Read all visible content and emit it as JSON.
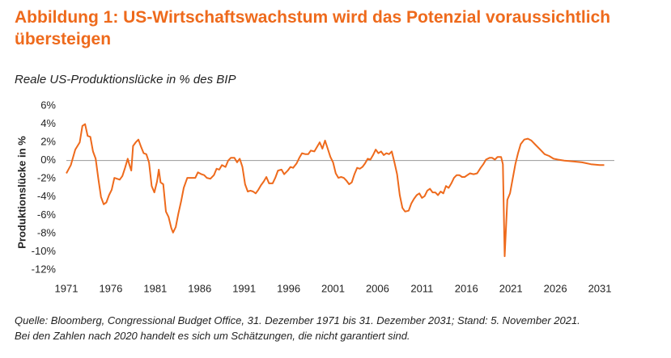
{
  "chart_data": {
    "type": "line",
    "title": "Abbildung 1: US-Wirtschaftswachstum wird das Potenzial voraussichtlich übersteigen",
    "subtitle": "Reale US-Produktionslücke in % des BIP",
    "y_label": "Produktionslücke in %",
    "footnote": [
      "Quelle: Bloomberg, Congressional Budget Office, 31. Dezember 1971 bis 31. Dezember 2031; Stand: 5. November 2021.",
      "Bei den Zahlen nach 2020 handelt es sich um Schätzungen, die nicht garantiert sind."
    ],
    "xlim": [
      1970,
      2033
    ],
    "xticks": [
      1971,
      1976,
      1981,
      1986,
      1991,
      1996,
      2001,
      2006,
      2011,
      2016,
      2021,
      2026,
      2031
    ],
    "ylim": [
      -12,
      6
    ],
    "yticks": [
      {
        "value": 6,
        "label": "6%"
      },
      {
        "value": 4,
        "label": "4%"
      },
      {
        "value": 2,
        "label": "2%"
      },
      {
        "value": 0,
        "label": "0%"
      },
      {
        "value": -2,
        "label": "-2%"
      },
      {
        "value": -4,
        "label": "-4%"
      },
      {
        "value": -6,
        "label": "-6%"
      },
      {
        "value": -8,
        "label": "-8%"
      },
      {
        "value": -10,
        "label": "-10%"
      },
      {
        "value": -12,
        "label": "-12%"
      }
    ],
    "series": [
      {
        "color": "#ee6a1c",
        "x": [
          1971.0,
          1971.5,
          1972.0,
          1972.5,
          1972.8,
          1973.1,
          1973.4,
          1973.7,
          1974.0,
          1974.3,
          1974.6,
          1974.9,
          1975.2,
          1975.5,
          1975.8,
          1976.1,
          1976.4,
          1976.7,
          1977.0,
          1977.3,
          1977.6,
          1977.9,
          1978.1,
          1978.3,
          1978.5,
          1978.8,
          1979.1,
          1979.4,
          1979.7,
          1980.0,
          1980.3,
          1980.6,
          1980.9,
          1981.2,
          1981.4,
          1981.6,
          1981.9,
          1982.2,
          1982.5,
          1982.8,
          1983.0,
          1983.3,
          1983.6,
          1983.9,
          1984.2,
          1984.6,
          1985.0,
          1985.5,
          1985.8,
          1986.2,
          1986.5,
          1986.8,
          1987.2,
          1987.6,
          1987.9,
          1988.2,
          1988.5,
          1988.9,
          1989.2,
          1989.5,
          1989.9,
          1990.2,
          1990.5,
          1990.8,
          1991.1,
          1991.4,
          1991.7,
          1992.0,
          1992.3,
          1992.6,
          1992.9,
          1993.2,
          1993.5,
          1993.8,
          1994.2,
          1994.5,
          1994.8,
          1995.2,
          1995.5,
          1995.9,
          1996.2,
          1996.5,
          1996.9,
          1997.2,
          1997.5,
          1997.9,
          1998.2,
          1998.5,
          1998.9,
          1999.2,
          1999.5,
          1999.8,
          2000.1,
          2000.4,
          2000.7,
          2001.0,
          2001.3,
          2001.6,
          2001.9,
          2002.2,
          2002.5,
          2002.8,
          2003.1,
          2003.4,
          2003.7,
          2004.0,
          2004.3,
          2004.6,
          2004.9,
          2005.2,
          2005.5,
          2005.8,
          2006.1,
          2006.4,
          2006.7,
          2007.0,
          2007.3,
          2007.6,
          2007.9,
          2008.2,
          2008.5,
          2008.8,
          2009.1,
          2009.5,
          2009.8,
          2010.1,
          2010.4,
          2010.7,
          2011.0,
          2011.3,
          2011.6,
          2011.9,
          2012.2,
          2012.5,
          2012.8,
          2013.1,
          2013.4,
          2013.7,
          2014.0,
          2014.3,
          2014.6,
          2014.9,
          2015.2,
          2015.5,
          2015.8,
          2016.1,
          2016.4,
          2016.8,
          2017.2,
          2017.6,
          2017.9,
          2018.2,
          2018.6,
          2018.9,
          2019.2,
          2019.5,
          2019.9,
          2020.1,
          2020.3,
          2020.6,
          2020.9,
          2021.2,
          2021.5,
          2021.8,
          2022.1,
          2022.5,
          2022.9,
          2023.3,
          2023.8,
          2024.3,
          2024.8,
          2025.3,
          2025.8,
          2026.3,
          2027,
          2028,
          2029,
          2030,
          2031,
          2031.5
        ],
        "values": [
          -1.4,
          -0.5,
          1.2,
          2.0,
          3.8,
          4.0,
          2.7,
          2.6,
          1.0,
          0.2,
          -2.0,
          -4.0,
          -4.8,
          -4.6,
          -3.8,
          -3.2,
          -1.9,
          -2.0,
          -2.1,
          -1.7,
          -0.8,
          0.2,
          -0.5,
          -1.1,
          1.6,
          2.0,
          2.3,
          1.5,
          0.8,
          0.7,
          -0.2,
          -2.8,
          -3.5,
          -2.3,
          -1.0,
          -2.4,
          -2.6,
          -5.6,
          -6.2,
          -7.4,
          -7.9,
          -7.3,
          -5.8,
          -4.5,
          -3.0,
          -1.9,
          -1.9,
          -1.9,
          -1.3,
          -1.5,
          -1.6,
          -1.9,
          -2.0,
          -1.6,
          -0.9,
          -1.0,
          -0.5,
          -0.7,
          0.0,
          0.3,
          0.3,
          -0.2,
          0.2,
          -0.7,
          -2.6,
          -3.4,
          -3.3,
          -3.4,
          -3.6,
          -3.2,
          -2.7,
          -2.3,
          -1.8,
          -2.5,
          -2.5,
          -1.9,
          -1.1,
          -1.0,
          -1.5,
          -1.1,
          -0.7,
          -0.8,
          -0.3,
          0.3,
          0.8,
          0.7,
          0.7,
          1.1,
          1.0,
          1.5,
          2.0,
          1.3,
          2.2,
          1.3,
          0.4,
          -0.2,
          -1.4,
          -1.9,
          -1.8,
          -1.9,
          -2.2,
          -2.6,
          -2.4,
          -1.5,
          -0.8,
          -0.9,
          -0.7,
          -0.3,
          0.2,
          0.1,
          0.6,
          1.2,
          0.8,
          1.0,
          0.6,
          0.8,
          0.7,
          1.0,
          -0.2,
          -1.5,
          -3.8,
          -5.2,
          -5.6,
          -5.5,
          -4.7,
          -4.2,
          -3.8,
          -3.6,
          -4.1,
          -3.9,
          -3.3,
          -3.1,
          -3.5,
          -3.5,
          -3.8,
          -3.4,
          -3.6,
          -2.8,
          -3.0,
          -2.5,
          -1.9,
          -1.6,
          -1.6,
          -1.8,
          -1.8,
          -1.6,
          -1.4,
          -1.5,
          -1.4,
          -0.8,
          -0.4,
          0.1,
          0.3,
          0.3,
          0.1,
          0.4,
          0.4,
          -0.4,
          -10.5,
          -4.3,
          -3.6,
          -2.0,
          -0.4,
          0.8,
          1.8,
          2.3,
          2.4,
          2.2,
          1.7,
          1.2,
          0.7,
          0.5,
          0.2,
          0.1,
          0.0,
          -0.1,
          -0.2,
          -0.4,
          -0.5,
          -0.5
        ]
      }
    ]
  }
}
